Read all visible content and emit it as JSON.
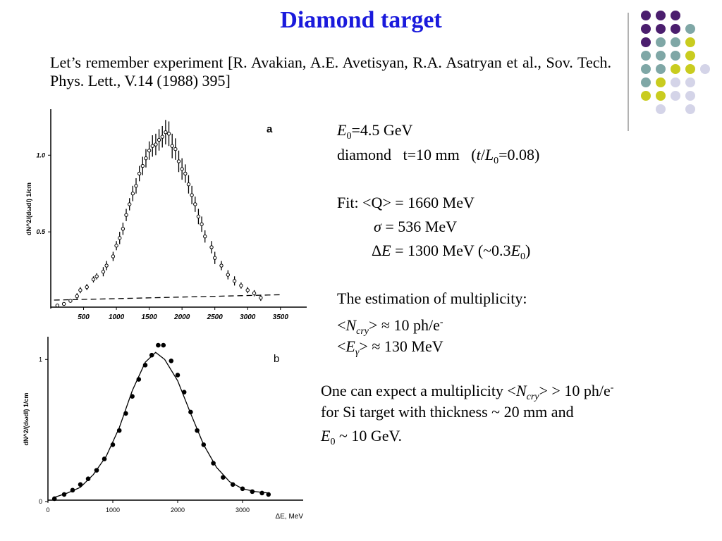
{
  "title": "Diamond target",
  "intro": "Let’s remember experiment [R. Avakian, A.E. Avetisyan, R.A. Asatryan et al., Sov. Tech. Phys. Lett., V.14 (1988) 395]",
  "parameters": [
    [
      {
        "t": "E",
        "s": "i"
      },
      {
        "t": "0",
        "s": "sub"
      },
      "=4.5 GeV"
    ],
    [
      "diamond   t=10 mm   (",
      {
        "t": "t",
        "s": "i"
      },
      "/",
      {
        "t": "L",
        "s": "i"
      },
      {
        "t": "0",
        "s": "sub"
      },
      "=0.08)"
    ]
  ],
  "fit": [
    [
      "Fit: <Q> = 1660 MeV"
    ],
    [
      {
        "t": "σ",
        "s": "i"
      },
      " = 536 MeV"
    ],
    [
      "Δ",
      {
        "t": "E",
        "s": "i"
      },
      " = 1300 MeV (~0.3",
      {
        "t": "E",
        "s": "i"
      },
      {
        "t": "0",
        "s": "sub"
      },
      ")"
    ]
  ],
  "multiplicity": [
    [
      "The estimation of multiplicity:"
    ],
    [
      "<",
      {
        "t": "N",
        "s": "i"
      },
      {
        "t": "cry",
        "s": "subi"
      },
      "> ≈ 10 ph/e",
      {
        "t": "-",
        "s": "sup"
      }
    ],
    [
      "<",
      {
        "t": "E",
        "s": "i"
      },
      {
        "t": "γ",
        "s": "subi"
      },
      "> ≈ 130 MeV"
    ]
  ],
  "expectation": [
    [
      "One can expect a multiplicity <",
      {
        "t": "N",
        "s": "i"
      },
      {
        "t": "cry",
        "s": "subi"
      },
      "> > 10 ph/e",
      {
        "t": "-",
        "s": "sup"
      }
    ],
    [
      "for Si target with thickness ~ 20 mm and"
    ],
    [
      {
        "t": "E",
        "s": "i"
      },
      {
        "t": "0",
        "s": "sub"
      },
      " ~ 10 GeV."
    ]
  ],
  "chart_data": [
    {
      "type": "scatter",
      "label": "a",
      "y_label": "dN^2/(dωdl) 1/cm",
      "xlim": [
        0,
        3900
      ],
      "ylim": [
        0,
        1.3
      ],
      "xticks": [
        500,
        1000,
        1500,
        2000,
        2500,
        3000,
        3500
      ],
      "yticks": [
        0.5,
        {
          "value": 1.0,
          "label": "1.0"
        }
      ],
      "x": [
        100,
        200,
        300,
        400,
        450,
        550,
        650,
        700,
        800,
        850,
        950,
        1000,
        1050,
        1100,
        1150,
        1200,
        1250,
        1300,
        1350,
        1400,
        1450,
        1500,
        1550,
        1600,
        1650,
        1700,
        1750,
        1800,
        1850,
        1900,
        1950,
        2000,
        2050,
        2100,
        2150,
        2200,
        2250,
        2300,
        2350,
        2450,
        2500,
        2600,
        2700,
        2800,
        2900,
        3000,
        3100,
        3200
      ],
      "values": [
        0.02,
        0.03,
        0.05,
        0.08,
        0.12,
        0.14,
        0.19,
        0.21,
        0.24,
        0.28,
        0.34,
        0.41,
        0.46,
        0.52,
        0.61,
        0.68,
        0.75,
        0.8,
        0.88,
        0.93,
        0.98,
        1.03,
        1.06,
        1.07,
        1.1,
        1.12,
        1.15,
        1.14,
        1.06,
        1.04,
        0.96,
        0.91,
        0.88,
        0.81,
        0.74,
        0.68,
        0.6,
        0.55,
        0.47,
        0.4,
        0.33,
        0.28,
        0.22,
        0.18,
        0.15,
        0.12,
        0.1,
        0.07
      ],
      "errors": [
        0.01,
        0.01,
        0.01,
        0.02,
        0.02,
        0.02,
        0.02,
        0.02,
        0.03,
        0.03,
        0.03,
        0.03,
        0.04,
        0.04,
        0.04,
        0.04,
        0.05,
        0.05,
        0.05,
        0.06,
        0.06,
        0.06,
        0.07,
        0.07,
        0.07,
        0.07,
        0.08,
        0.08,
        0.08,
        0.07,
        0.07,
        0.07,
        0.06,
        0.06,
        0.06,
        0.05,
        0.05,
        0.05,
        0.04,
        0.04,
        0.04,
        0.03,
        0.03,
        0.03,
        0.02,
        0.02,
        0.02,
        0.02
      ],
      "baseline": {
        "x": [
          50,
          3500
        ],
        "values": [
          0.055,
          0.09
        ]
      }
    },
    {
      "type": "scatter",
      "label": "b",
      "y_label": "dN^2/(dωdl) 1/cm",
      "x_label": "ΔE, MeV",
      "xlim": [
        0,
        3935
      ],
      "ylim": [
        0,
        1.16
      ],
      "xticks": [
        0,
        1000,
        2000,
        3000
      ],
      "yticks": [
        0,
        1
      ],
      "x": [
        100,
        250,
        380,
        500,
        620,
        750,
        870,
        1000,
        1100,
        1200,
        1300,
        1400,
        1500,
        1600,
        1700,
        1780,
        1900,
        2000,
        2100,
        2200,
        2300,
        2400,
        2550,
        2700,
        2850,
        3000,
        3150,
        3300,
        3400
      ],
      "values": [
        0.02,
        0.05,
        0.08,
        0.12,
        0.16,
        0.22,
        0.3,
        0.4,
        0.5,
        0.62,
        0.74,
        0.86,
        0.96,
        1.03,
        1.1,
        1.1,
        0.99,
        0.89,
        0.77,
        0.63,
        0.5,
        0.4,
        0.27,
        0.17,
        0.12,
        0.09,
        0.07,
        0.06,
        0.05
      ],
      "fit": {
        "x": [
          100,
          300,
          500,
          700,
          900,
          1100,
          1300,
          1500,
          1660,
          1800,
          2000,
          2200,
          2400,
          2600,
          2800,
          3000,
          3200,
          3400
        ],
        "values": [
          0.03,
          0.06,
          0.1,
          0.19,
          0.32,
          0.52,
          0.78,
          0.98,
          1.05,
          1.0,
          0.85,
          0.62,
          0.4,
          0.24,
          0.14,
          0.09,
          0.07,
          0.06
        ]
      }
    }
  ]
}
